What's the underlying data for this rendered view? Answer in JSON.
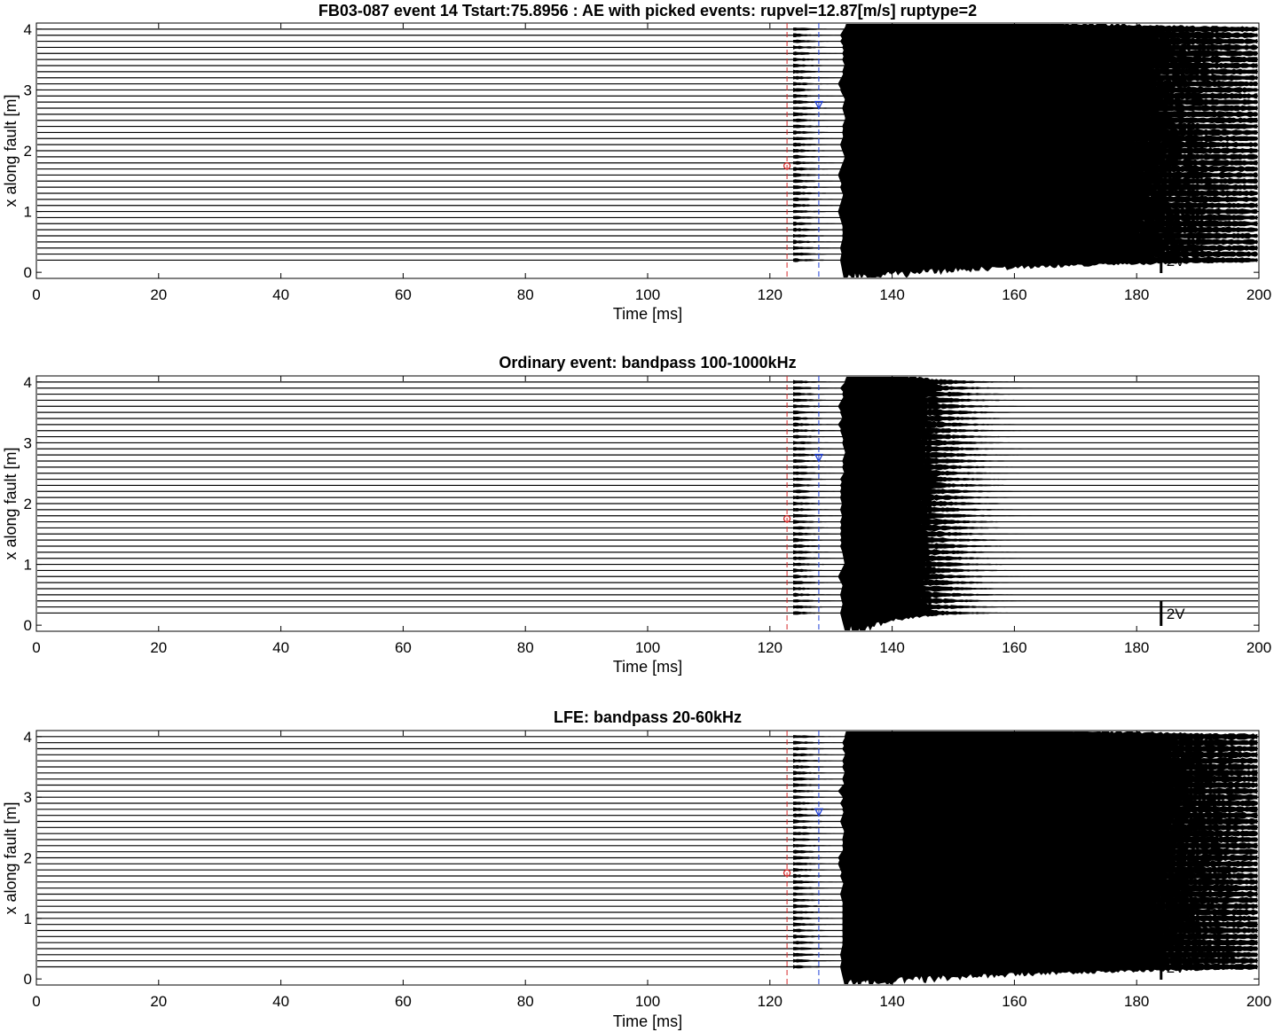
{
  "chart_data": [
    {
      "type": "line",
      "variant": "seismic-trace-record",
      "title": "FB03-087 event 14 Tstart:75.8956 : AE with picked events: rupvel=12.87[m/s] ruptype=2",
      "xlabel": "Time [ms]",
      "ylabel": "x along fault [m]",
      "xlim": [
        0,
        200
      ],
      "ylim": [
        -0.1,
        4.1
      ],
      "xticks": [
        "0",
        "20",
        "40",
        "60",
        "80",
        "100",
        "120",
        "140",
        "160",
        "180",
        "200"
      ],
      "yticks": [
        "0",
        "1",
        "2",
        "3",
        "4"
      ],
      "scale_bar_label": "2V",
      "scale_bar_volts": 2,
      "grid": false,
      "channel_positions_m": [
        0.2,
        0.3,
        0.4,
        0.5,
        0.6,
        0.7,
        0.8,
        0.9,
        1.0,
        1.1,
        1.2,
        1.3,
        1.4,
        1.5,
        1.6,
        1.7,
        1.8,
        1.9,
        2.0,
        2.1,
        2.2,
        2.3,
        2.4,
        2.5,
        2.6,
        2.7,
        2.8,
        2.9,
        3.0,
        3.1,
        3.2,
        3.3,
        3.4,
        3.5,
        3.6,
        3.7,
        3.8,
        3.9,
        4.0
      ],
      "trace_color": "#000000",
      "first_arrival_ms": 123.5,
      "main_arrival_ms": 132.5,
      "main_arrival_spread_ms": 1.6,
      "coda_decay_ms": 30,
      "pick_red_line_ms": 122.8,
      "pick_red_circle": {
        "x": 122.8,
        "y": 1.75
      },
      "pick_blue_line_ms": 128,
      "pick_blue_triangle": {
        "x": 128,
        "y": 2.75
      },
      "pick_colors": {
        "red": "#d62728",
        "blue": "#1f3fd6"
      }
    },
    {
      "type": "line",
      "variant": "seismic-trace-record",
      "title": "Ordinary event: bandpass 100-1000kHz",
      "xlabel": "Time [ms]",
      "ylabel": "x along fault [m]",
      "xlim": [
        0,
        200
      ],
      "ylim": [
        -0.1,
        4.1
      ],
      "xticks": [
        "0",
        "20",
        "40",
        "60",
        "80",
        "100",
        "120",
        "140",
        "160",
        "180",
        "200"
      ],
      "yticks": [
        "0",
        "1",
        "2",
        "3",
        "4"
      ],
      "scale_bar_label": "2V",
      "scale_bar_volts": 2,
      "grid": false,
      "channel_positions_m": [
        0.2,
        0.3,
        0.4,
        0.5,
        0.6,
        0.7,
        0.8,
        0.9,
        1.0,
        1.1,
        1.2,
        1.3,
        1.4,
        1.5,
        1.6,
        1.7,
        1.8,
        1.9,
        2.0,
        2.1,
        2.2,
        2.3,
        2.4,
        2.5,
        2.6,
        2.7,
        2.8,
        2.9,
        3.0,
        3.1,
        3.2,
        3.3,
        3.4,
        3.5,
        3.6,
        3.7,
        3.8,
        3.9,
        4.0
      ],
      "trace_color": "#000000",
      "first_arrival_ms": 123.5,
      "main_arrival_ms": 132.5,
      "main_arrival_spread_ms": 1.2,
      "coda_decay_ms": 6,
      "pick_red_line_ms": 122.8,
      "pick_red_circle": {
        "x": 122.8,
        "y": 1.75
      },
      "pick_blue_line_ms": 128,
      "pick_blue_triangle": {
        "x": 128,
        "y": 2.75
      },
      "pick_colors": {
        "red": "#d62728",
        "blue": "#1f3fd6"
      }
    },
    {
      "type": "line",
      "variant": "seismic-trace-record",
      "title": "LFE: bandpass 20-60kHz",
      "xlabel": "Time [ms]",
      "ylabel": "x along fault [m]",
      "xlim": [
        0,
        200
      ],
      "ylim": [
        -0.1,
        4.1
      ],
      "xticks": [
        "0",
        "20",
        "40",
        "60",
        "80",
        "100",
        "120",
        "140",
        "160",
        "180",
        "200"
      ],
      "yticks": [
        "0",
        "1",
        "2",
        "3",
        "4"
      ],
      "scale_bar_label": "2V",
      "scale_bar_volts": 2,
      "grid": false,
      "channel_positions_m": [
        0.2,
        0.3,
        0.4,
        0.5,
        0.6,
        0.7,
        0.8,
        0.9,
        1.0,
        1.1,
        1.2,
        1.3,
        1.4,
        1.5,
        1.6,
        1.7,
        1.8,
        1.9,
        2.0,
        2.1,
        2.2,
        2.3,
        2.4,
        2.5,
        2.6,
        2.7,
        2.8,
        2.9,
        3.0,
        3.1,
        3.2,
        3.3,
        3.4,
        3.5,
        3.6,
        3.7,
        3.8,
        3.9,
        4.0
      ],
      "trace_color": "#000000",
      "first_arrival_ms": 123.5,
      "main_arrival_ms": 132.5,
      "main_arrival_spread_ms": 1.6,
      "coda_decay_ms": 32,
      "pick_red_line_ms": 122.8,
      "pick_red_circle": {
        "x": 122.8,
        "y": 1.75
      },
      "pick_blue_line_ms": 128,
      "pick_blue_triangle": {
        "x": 128,
        "y": 2.75
      },
      "pick_colors": {
        "red": "#d62728",
        "blue": "#1f3fd6"
      }
    }
  ]
}
